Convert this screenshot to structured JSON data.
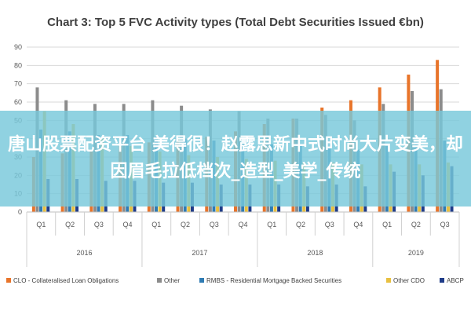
{
  "chart_data": {
    "type": "bar",
    "title": "Chart 3: Top 5 FVC Activity types (Total Debt Securities Issued €bn)",
    "ylim": [
      0,
      90
    ],
    "yticks": [
      0,
      10,
      20,
      30,
      40,
      50,
      60,
      70,
      80,
      90
    ],
    "grid": true,
    "legend_position": "bottom",
    "categories": [
      "Q1",
      "Q2",
      "Q3",
      "Q4",
      "Q1",
      "Q2",
      "Q3",
      "Q4",
      "Q1",
      "Q2",
      "Q3",
      "Q4",
      "Q1",
      "Q2",
      "Q3"
    ],
    "years": [
      {
        "label": "2016",
        "start": 0,
        "end": 3
      },
      {
        "label": "2017",
        "start": 4,
        "end": 7
      },
      {
        "label": "2018",
        "start": 8,
        "end": 11
      },
      {
        "label": "2019",
        "start": 12,
        "end": 14
      }
    ],
    "series": [
      {
        "name": "CLO - Collateralised Loan Obligations",
        "color": "#E8742A",
        "values": [
          30,
          32,
          33,
          36,
          38,
          40,
          41,
          44,
          48,
          51,
          57,
          61,
          68,
          75,
          83
        ]
      },
      {
        "name": "Other",
        "color": "#8C8C8C",
        "values": [
          68,
          61,
          59,
          59,
          61,
          58,
          56,
          55,
          51,
          51,
          53,
          50,
          59,
          66,
          67
        ]
      },
      {
        "name": "RMBS - Residential Mortgage Backed Securities",
        "color": "#2F7BB3",
        "values": [
          45,
          44,
          42,
          42,
          41,
          40,
          39,
          38,
          37,
          36,
          35,
          34,
          36,
          38,
          39
        ]
      },
      {
        "name": "Other CDO",
        "color": "#E8C040",
        "values": [
          55,
          48,
          40,
          36,
          33,
          31,
          30,
          29,
          28,
          27,
          27,
          26,
          26,
          26,
          27
        ]
      },
      {
        "name": "ABCP",
        "color": "#1F3C88",
        "values": [
          18,
          18,
          17,
          17,
          16,
          16,
          15,
          15,
          15,
          14,
          15,
          14,
          22,
          20,
          25
        ]
      }
    ]
  },
  "overlay": {
    "text": "唐山股票配资平台 美得很！赵露思新中式时尚大片变美，却因眉毛拉低档次_造型_美学_传统"
  }
}
